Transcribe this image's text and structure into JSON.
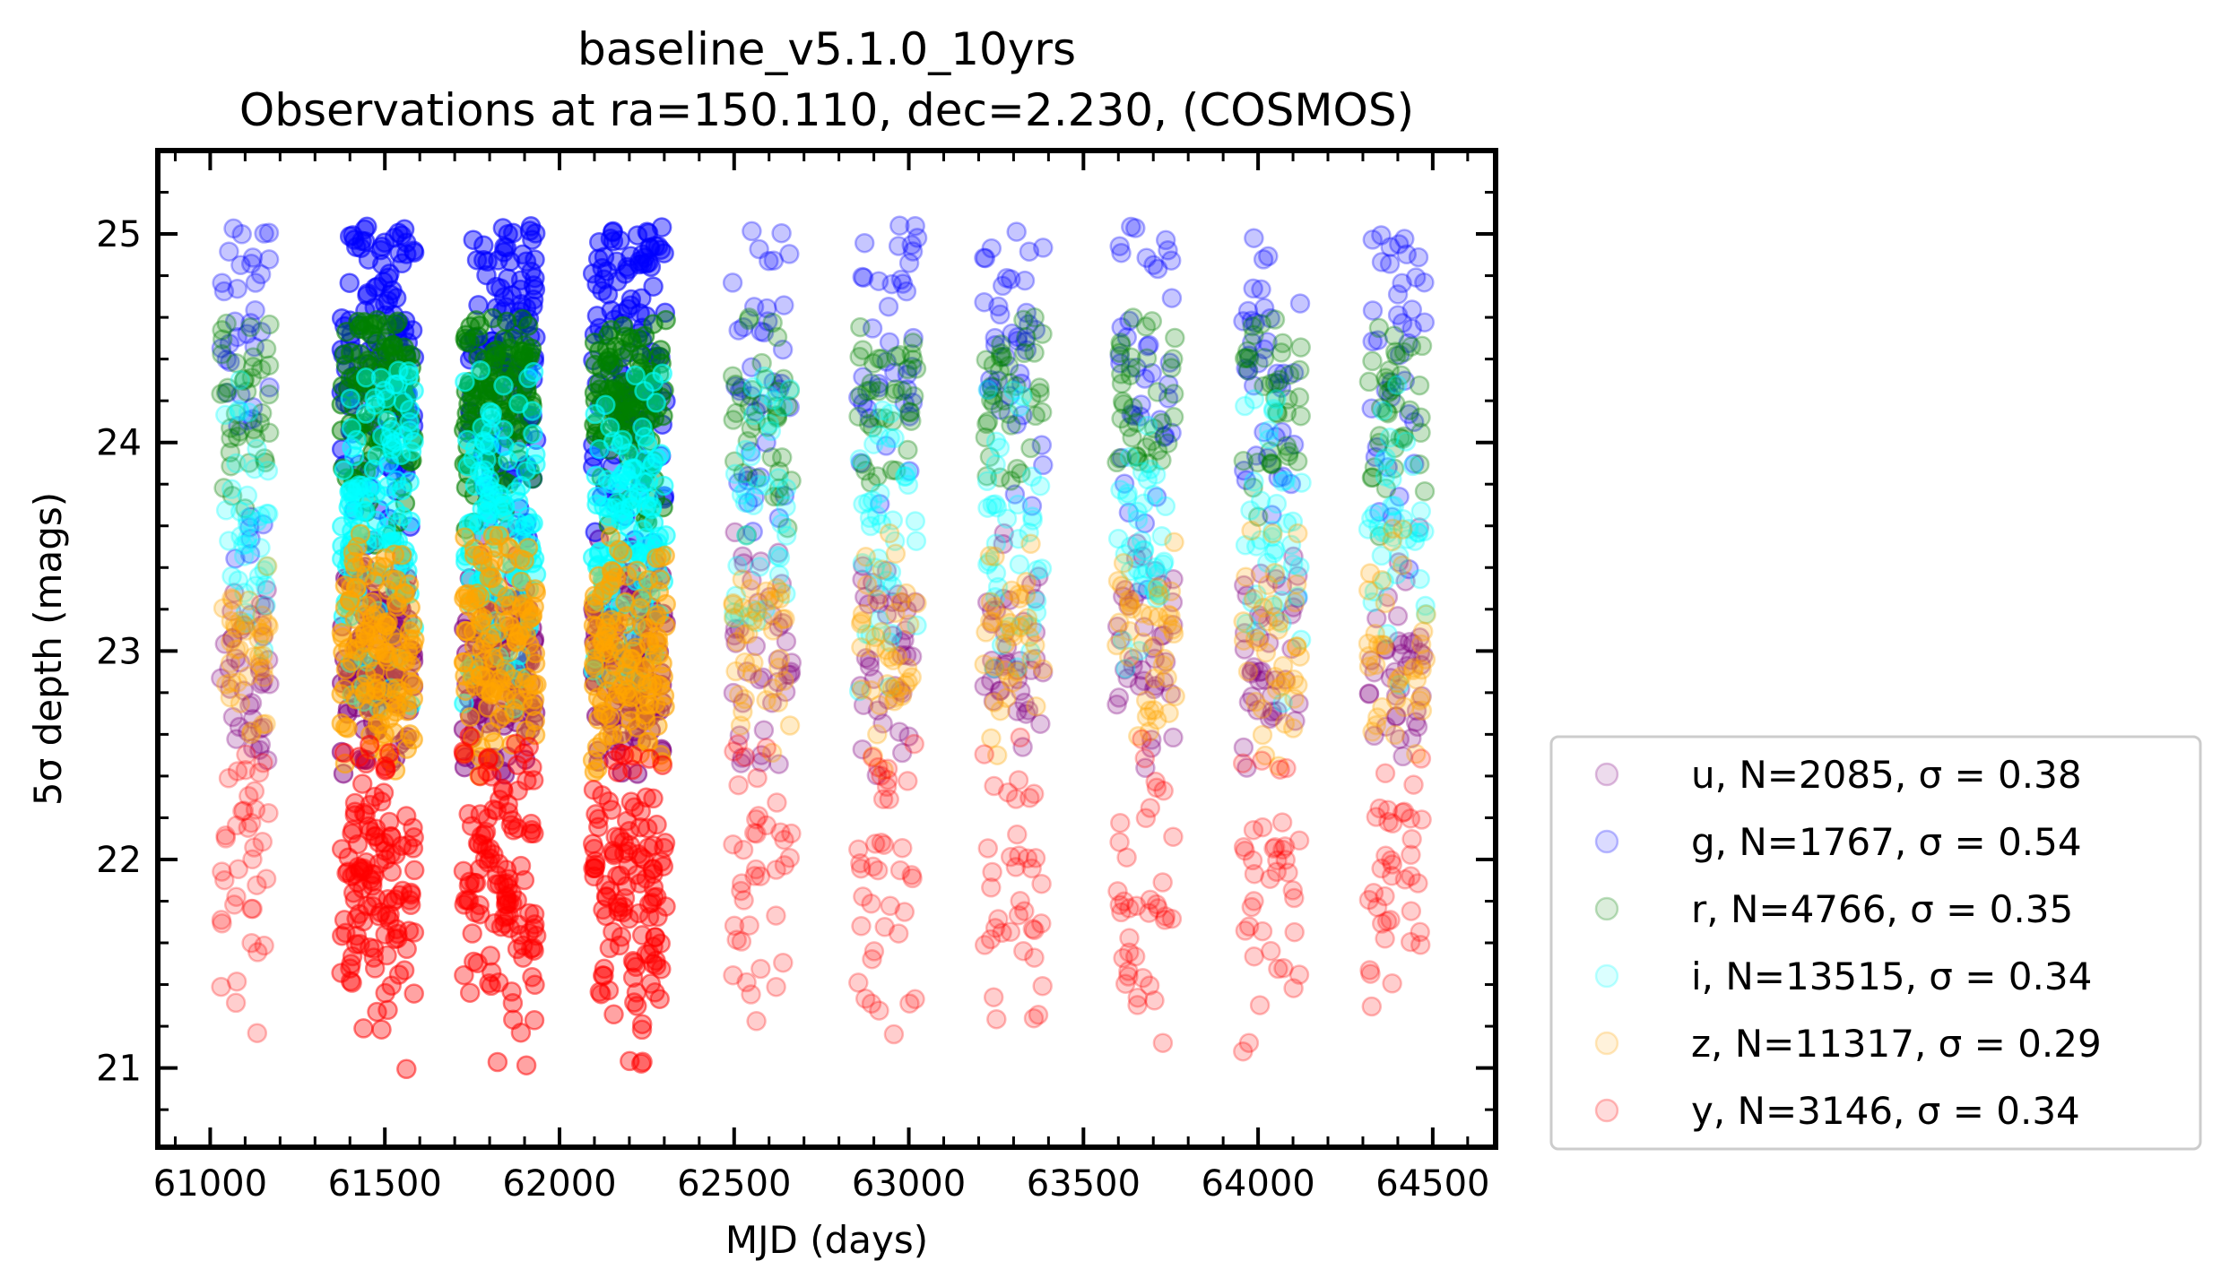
{
  "chart_data": {
    "type": "scatter",
    "title": "baseline_v5.1.0_10yrs",
    "subtitle": "Observations at ra=150.110, dec=2.230, (COSMOS)",
    "xlabel": "MJD (days)",
    "ylabel": "5σ depth (mags)",
    "xlim": [
      60850,
      64680
    ],
    "ylim": [
      20.62,
      25.4
    ],
    "x_ticks": [
      61000,
      61500,
      62000,
      62500,
      63000,
      63500,
      64000,
      64500
    ],
    "x_tick_labels": [
      "61000",
      "61500",
      "62000",
      "62500",
      "63000",
      "63500",
      "64000",
      "64500"
    ],
    "y_ticks": [
      21,
      22,
      23,
      24,
      25
    ],
    "y_tick_labels": [
      "21",
      "22",
      "23",
      "24",
      "25"
    ],
    "grid": false,
    "legend_position": "outside-right-bottom",
    "seasons": [
      {
        "center": 61100,
        "width": 140,
        "dense": false
      },
      {
        "center": 61480,
        "width": 210,
        "dense": true
      },
      {
        "center": 61830,
        "width": 210,
        "dense": true
      },
      {
        "center": 62200,
        "width": 210,
        "dense": true
      },
      {
        "center": 62580,
        "width": 170,
        "dense": false
      },
      {
        "center": 62940,
        "width": 170,
        "dense": false
      },
      {
        "center": 63300,
        "width": 170,
        "dense": false
      },
      {
        "center": 63680,
        "width": 170,
        "dense": false
      },
      {
        "center": 64040,
        "width": 170,
        "dense": false
      },
      {
        "center": 64400,
        "width": 170,
        "dense": false
      }
    ],
    "series": [
      {
        "name": "u",
        "N": 2085,
        "sigma": 0.38,
        "legend": "u, N=2085, σ =  0.38",
        "color": "#800080",
        "depth_range": [
          22.4,
          23.6
        ],
        "depth_center": 22.95,
        "alpha": 0.14
      },
      {
        "name": "g",
        "N": 1767,
        "sigma": 0.54,
        "legend": "g, N=1767, σ =  0.54",
        "color": "#0000ff",
        "depth_range": [
          23.0,
          25.05
        ],
        "depth_center": 24.4,
        "alpha": 0.14
      },
      {
        "name": "r",
        "N": 4766,
        "sigma": 0.35,
        "legend": "r, N=4766, σ =  0.35",
        "color": "#008000",
        "depth_range": [
          23.5,
          24.6
        ],
        "depth_center": 24.2,
        "alpha": 0.14
      },
      {
        "name": "i",
        "N": 13515,
        "sigma": 0.34,
        "legend": "i, N=13515, σ =  0.34",
        "color": "#00ffff",
        "depth_range": [
          22.7,
          24.35
        ],
        "depth_center": 23.6,
        "alpha": 0.14
      },
      {
        "name": "z",
        "N": 11317,
        "sigma": 0.29,
        "legend": "z, N=11317, σ =  0.29",
        "color": "#ffa500",
        "depth_range": [
          22.4,
          23.6
        ],
        "depth_center": 23.0,
        "alpha": 0.14
      },
      {
        "name": "y",
        "N": 3146,
        "sigma": 0.34,
        "legend": "y, N=3146, σ =  0.34",
        "color": "#ff0000",
        "depth_range": [
          20.95,
          22.6
        ],
        "depth_center": 21.9,
        "alpha": 0.12
      }
    ]
  }
}
